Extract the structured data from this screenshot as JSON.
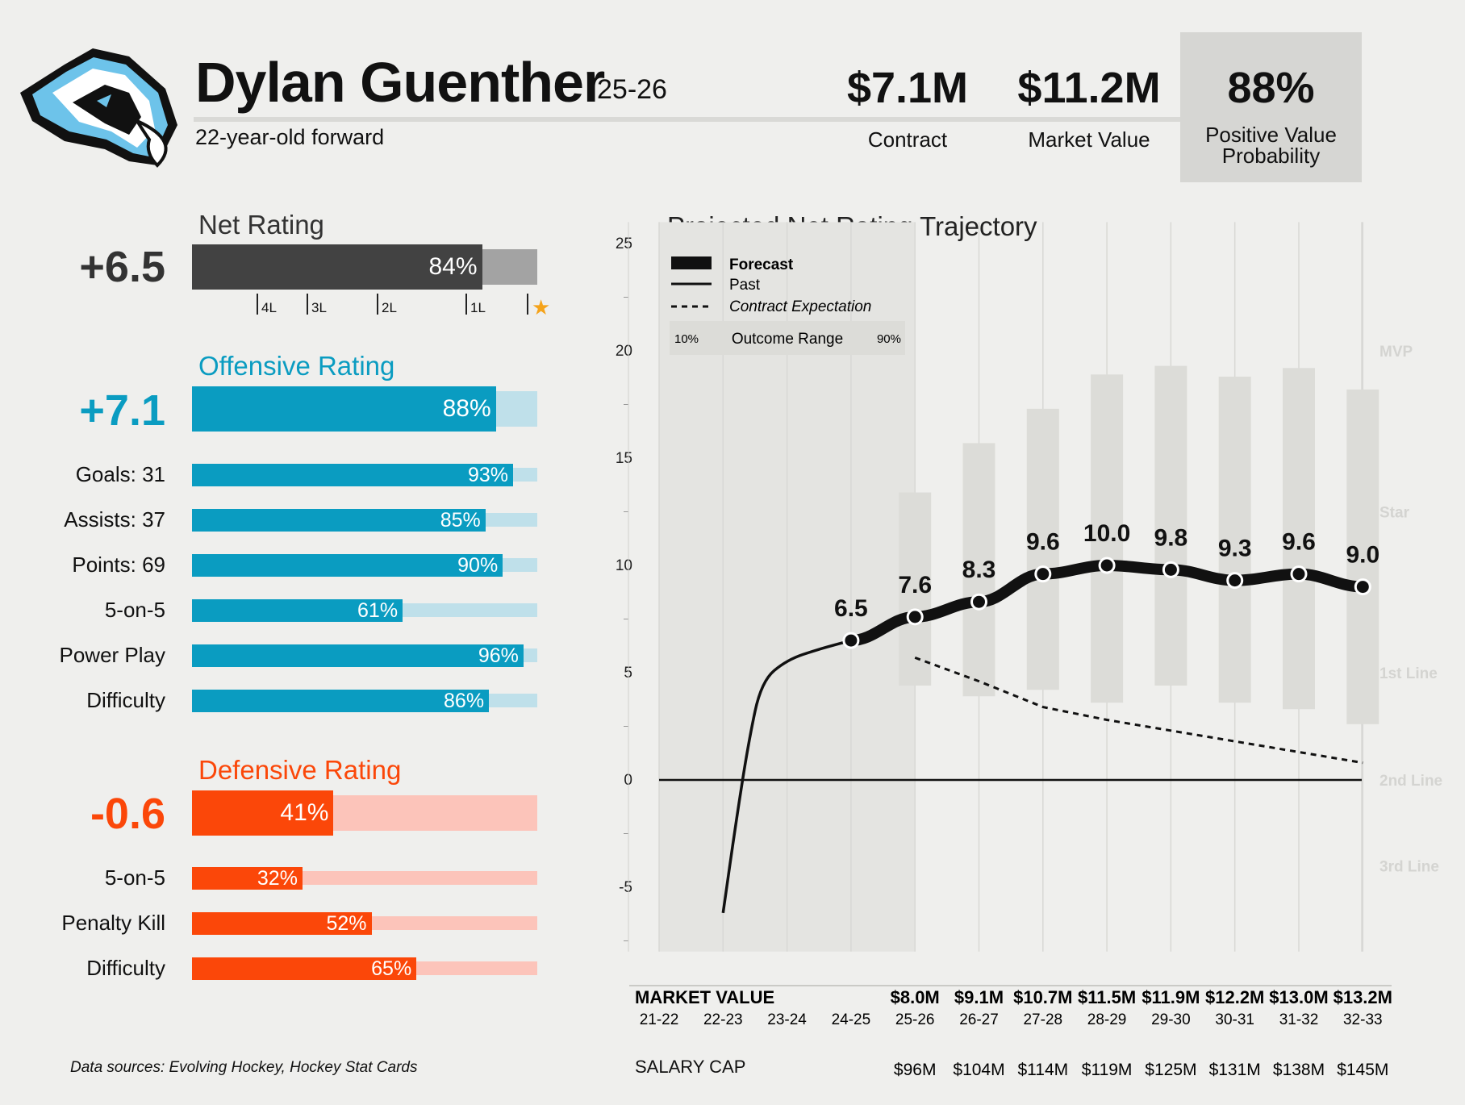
{
  "header": {
    "player_name": "Dylan Guenther",
    "season": "25-26",
    "subtitle": "22-year-old forward",
    "contract_value": "$7.1M",
    "contract_label": "Contract",
    "market_value": "$11.2M",
    "market_label": "Market Value",
    "pvp_value": "88%",
    "pvp_label_1": "Positive Value",
    "pvp_label_2": "Probability"
  },
  "net": {
    "title": "Net Rating",
    "value": "+6.5",
    "pct": "84%",
    "pct_num": 84,
    "ticks": [
      "4L",
      "3L",
      "2L",
      "1L"
    ]
  },
  "offense": {
    "title": "Offensive Rating",
    "value": "+7.1",
    "pct": "88%",
    "pct_num": 88,
    "rows": [
      {
        "label": "Goals: 31",
        "pct": "93%",
        "pct_num": 93
      },
      {
        "label": "Assists: 37",
        "pct": "85%",
        "pct_num": 85
      },
      {
        "label": "Points: 69",
        "pct": "90%",
        "pct_num": 90
      },
      {
        "label": "5-on-5",
        "pct": "61%",
        "pct_num": 61
      },
      {
        "label": "Power Play",
        "pct": "96%",
        "pct_num": 96
      },
      {
        "label": "Difficulty",
        "pct": "86%",
        "pct_num": 86
      }
    ]
  },
  "defense": {
    "title": "Defensive Rating",
    "value": "-0.6",
    "pct": "41%",
    "pct_num": 41,
    "rows": [
      {
        "label": "5-on-5",
        "pct": "32%",
        "pct_num": 32
      },
      {
        "label": "Penalty Kill",
        "pct": "52%",
        "pct_num": 52
      },
      {
        "label": "Difficulty",
        "pct": "65%",
        "pct_num": 65
      }
    ]
  },
  "colors": {
    "net_bar": "#424242",
    "net_track": "#a3a3a3",
    "off_bar": "#0a9cc1",
    "off_track": "#bfe0ea",
    "def_bar": "#fb4709",
    "def_track": "#fcc4ba",
    "star": "#f5a31a"
  },
  "footer": {
    "source": "Data sources: Evolving Hockey, Hockey Stat Cards",
    "salary_cap_label": "SALARY CAP",
    "market_value_label": "MARKET VALUE"
  },
  "chart_data": {
    "type": "line",
    "title": "Projected Net Rating Trajectory",
    "ylim": [
      -8,
      26
    ],
    "yticks": [
      -5,
      0,
      5,
      10,
      15,
      20,
      25
    ],
    "tier_labels": [
      {
        "label": "MVP",
        "y": 20
      },
      {
        "label": "Star",
        "y": 12.5
      },
      {
        "label": "1st Line",
        "y": 5
      },
      {
        "label": "2nd Line",
        "y": 0
      },
      {
        "label": "3rd Line",
        "y": -4
      }
    ],
    "seasons": [
      "21-22",
      "22-23",
      "23-24",
      "24-25",
      "25-26",
      "26-27",
      "27-28",
      "28-29",
      "29-30",
      "30-31",
      "31-32",
      "32-33"
    ],
    "past_line": [
      [
        1,
        -6.2
      ],
      [
        1.2,
        -2
      ],
      [
        1.4,
        1.8
      ],
      [
        1.6,
        4.6
      ],
      [
        2.0,
        5.6
      ],
      [
        2.5,
        6.1
      ],
      [
        3,
        6.5
      ]
    ],
    "forecast": {
      "name": "Forecast",
      "x": [
        3,
        4,
        5,
        6,
        7,
        8,
        9,
        10,
        11
      ],
      "values": [
        6.5,
        7.6,
        8.3,
        9.6,
        10.0,
        9.8,
        9.3,
        9.6,
        9.0
      ],
      "labels": [
        "6.5",
        "7.6",
        "8.3",
        "9.6",
        "10.0",
        "9.8",
        "9.3",
        "9.6",
        "9.0"
      ]
    },
    "contract_expectation": {
      "name": "Contract Expectation",
      "x": [
        4,
        5,
        6,
        7,
        8,
        9,
        10,
        11
      ],
      "values": [
        5.7,
        4.6,
        3.4,
        2.8,
        2.3,
        1.8,
        1.3,
        0.8
      ]
    },
    "outcome_range": {
      "name": "Outcome Range",
      "low_label": "10%",
      "high_label": "90%",
      "x": [
        4,
        5,
        6,
        7,
        8,
        9,
        10,
        11
      ],
      "low": [
        4.4,
        3.9,
        4.2,
        3.6,
        4.4,
        3.6,
        3.3,
        2.6
      ],
      "high": [
        13.4,
        15.7,
        17.3,
        18.9,
        19.3,
        18.8,
        19.2,
        18.2
      ]
    },
    "legend": {
      "forecast": "Forecast",
      "past": "Past",
      "contract": "Contract Expectation",
      "range": "Outcome Range",
      "low": "10%",
      "high": "90%"
    },
    "market_values": [
      "",
      "",
      "",
      "",
      "$8.0M",
      "$9.1M",
      "$10.7M",
      "$11.5M",
      "$11.9M",
      "$12.2M",
      "$13.0M",
      "$13.2M"
    ],
    "salary_caps": [
      "",
      "",
      "",
      "",
      "$96M",
      "$104M",
      "$114M",
      "$119M",
      "$125M",
      "$131M",
      "$138M",
      "$145M"
    ]
  }
}
